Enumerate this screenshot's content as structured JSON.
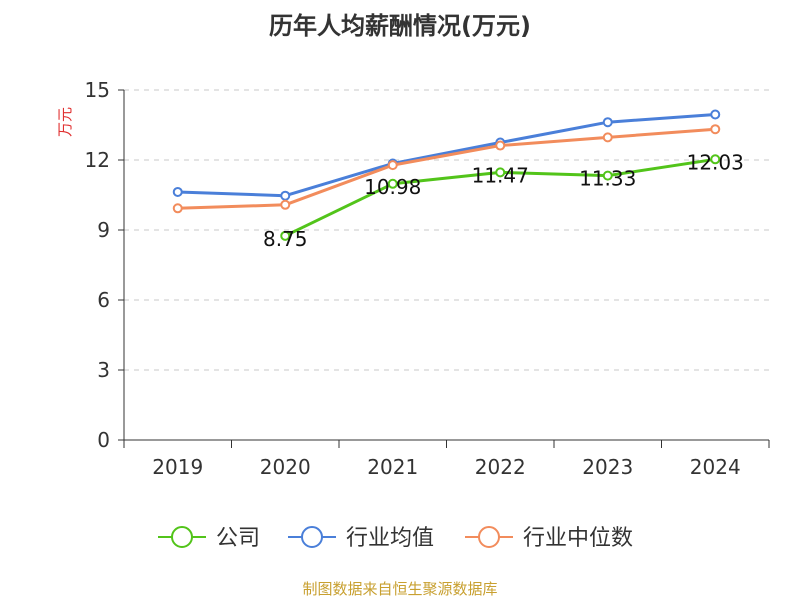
{
  "chart_data": {
    "type": "line",
    "title": "历年人均薪酬情况(万元)",
    "ylabel": "万元",
    "xlabel": "",
    "ylim": [
      0,
      15
    ],
    "yticks": [
      0,
      3,
      6,
      9,
      12,
      15
    ],
    "categories": [
      "2019",
      "2020",
      "2021",
      "2022",
      "2023",
      "2024"
    ],
    "series": [
      {
        "name": "公司",
        "color": "#52c41a",
        "values": [
          null,
          8.75,
          10.98,
          11.47,
          11.33,
          12.03
        ],
        "labels": [
          "",
          "8.75",
          "10.98",
          "11.47",
          "11.33",
          "12.03"
        ]
      },
      {
        "name": "行业均值",
        "color": "#4a7fd9",
        "values": [
          10.63,
          10.47,
          11.85,
          12.75,
          13.62,
          13.95
        ]
      },
      {
        "name": "行业中位数",
        "color": "#f28c5c",
        "values": [
          9.93,
          10.08,
          11.78,
          12.62,
          12.97,
          13.32
        ]
      }
    ],
    "grid": true,
    "legend": "bottom"
  },
  "source": "制图数据来自恒生聚源数据库"
}
